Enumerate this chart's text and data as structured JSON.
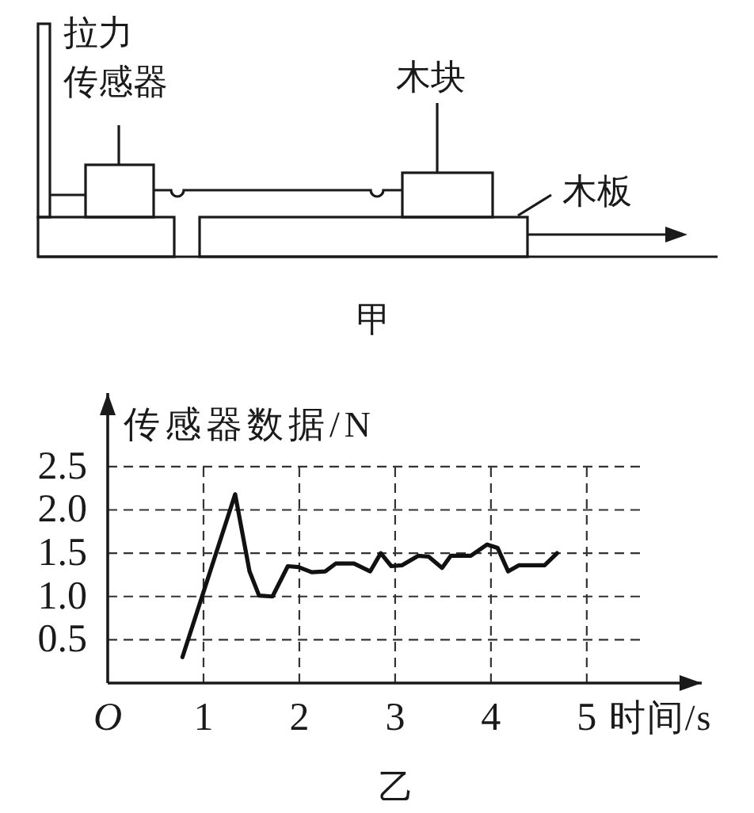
{
  "chart_data": {
    "type": "line",
    "xlabel": "时间/s",
    "ylabel": "传感器数据/N",
    "annotations": [
      "拉力传感器",
      "木块",
      "木板",
      "甲",
      "乙"
    ],
    "x": [
      0.78,
      1.33,
      1.48,
      1.58,
      1.72,
      1.88,
      1.99,
      2.13,
      2.27,
      2.38,
      2.57,
      2.74,
      2.85,
      2.96,
      3.07,
      3.24,
      3.35,
      3.49,
      3.58,
      3.79,
      3.96,
      4.07,
      4.18,
      4.29,
      4.56,
      4.69
    ],
    "series": [
      {
        "color": "#111111",
        "values": [
          0.3,
          2.18,
          1.29,
          1.01,
          1.0,
          1.35,
          1.34,
          1.28,
          1.29,
          1.38,
          1.38,
          1.29,
          1.5,
          1.35,
          1.36,
          1.47,
          1.46,
          1.33,
          1.47,
          1.47,
          1.6,
          1.56,
          1.29,
          1.36,
          1.36,
          1.5
        ]
      }
    ],
    "xlim": [
      0,
      6.2
    ],
    "ylim": [
      0,
      3.35
    ],
    "xticks": [
      {
        "value": 0,
        "label": "O"
      },
      1,
      2,
      3,
      4,
      5
    ],
    "yticks": [
      0.5,
      {
        "value": 1,
        "label": "1.0"
      },
      1.5,
      {
        "value": 2,
        "label": "2.0"
      },
      2.5
    ],
    "grid": true,
    "line_style": "solid"
  }
}
